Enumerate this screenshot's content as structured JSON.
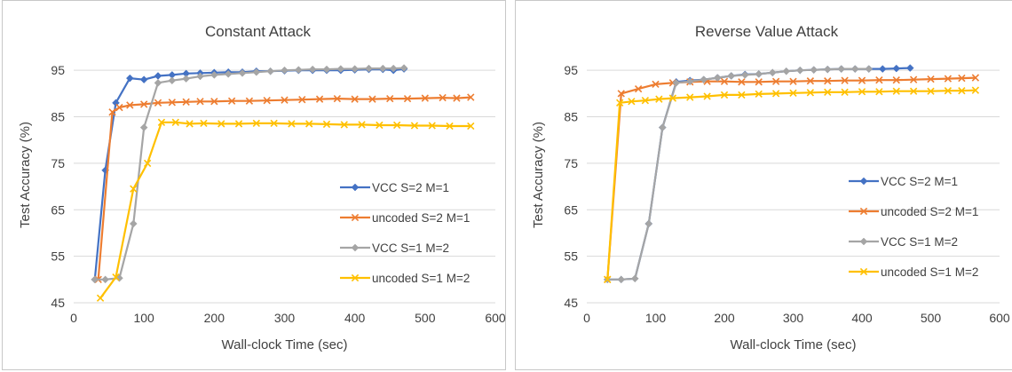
{
  "chart_data": [
    {
      "type": "line",
      "title": "Constant Attack",
      "xlabel": "Wall-clock Time (sec)",
      "ylabel": "Test Accuracy (%)",
      "xlim": [
        0,
        600
      ],
      "ylim": [
        45,
        100
      ],
      "xticks": [
        "0",
        "100",
        "200",
        "300",
        "400",
        "500",
        "600"
      ],
      "yticks": [
        "45",
        "55",
        "65",
        "75",
        "85",
        "95"
      ],
      "grid": "horizontal",
      "legend_position": "right",
      "series": [
        {
          "name": "VCC S=2 M=1",
          "color": "#4472C4",
          "marker": "diamond",
          "x": [
            30,
            45,
            60,
            80,
            100,
            120,
            140,
            160,
            180,
            200,
            220,
            240,
            260,
            280,
            300,
            320,
            340,
            360,
            380,
            400,
            420,
            440,
            455,
            470
          ],
          "y": [
            50,
            73.5,
            88,
            93.3,
            93,
            93.8,
            94,
            94.3,
            94.4,
            94.5,
            94.6,
            94.6,
            94.8,
            94.8,
            94.9,
            95,
            95,
            95,
            95,
            95.1,
            95.2,
            95.2,
            95,
            95.3
          ]
        },
        {
          "name": "uncoded S=2 M=1",
          "color": "#ED7D31",
          "marker": "x",
          "x": [
            35,
            55,
            65,
            80,
            100,
            120,
            140,
            160,
            180,
            200,
            225,
            250,
            275,
            300,
            325,
            350,
            375,
            400,
            425,
            450,
            475,
            500,
            525,
            545,
            565
          ],
          "y": [
            50,
            86,
            87,
            87.5,
            87.7,
            88,
            88.1,
            88.2,
            88.3,
            88.3,
            88.4,
            88.4,
            88.5,
            88.6,
            88.7,
            88.8,
            88.9,
            88.8,
            88.8,
            88.9,
            88.9,
            89,
            89.1,
            89,
            89.2
          ]
        },
        {
          "name": "VCC S=1 M=2",
          "color": "#A5A5A5",
          "marker": "diamond",
          "x": [
            30,
            45,
            65,
            85,
            100,
            120,
            140,
            160,
            180,
            200,
            220,
            240,
            260,
            280,
            300,
            320,
            340,
            360,
            380,
            400,
            420,
            440,
            455,
            470
          ],
          "y": [
            50,
            50,
            50.3,
            62,
            82.7,
            92.3,
            92.8,
            93.2,
            93.7,
            94,
            94.2,
            94.4,
            94.6,
            94.8,
            95,
            95.1,
            95.2,
            95.2,
            95.3,
            95.3,
            95.4,
            95.4,
            95.4,
            95.5
          ]
        },
        {
          "name": "uncoded S=1 M=2",
          "color": "#FFC000",
          "marker": "x",
          "x": [
            38,
            60,
            85,
            105,
            125,
            145,
            165,
            185,
            210,
            235,
            260,
            285,
            310,
            335,
            360,
            385,
            410,
            435,
            460,
            485,
            510,
            535,
            565
          ],
          "y": [
            46,
            50.5,
            69.5,
            75,
            83.8,
            83.8,
            83.5,
            83.6,
            83.5,
            83.5,
            83.6,
            83.6,
            83.5,
            83.5,
            83.4,
            83.3,
            83.3,
            83.2,
            83.2,
            83.1,
            83.1,
            83,
            83
          ]
        }
      ]
    },
    {
      "type": "line",
      "title": "Reverse Value Attack",
      "xlabel": "Wall-clock Time (sec)",
      "ylabel": "Test Accuracy (%)",
      "xlim": [
        0,
        600
      ],
      "ylim": [
        45,
        100
      ],
      "xticks": [
        "0",
        "100",
        "200",
        "300",
        "400",
        "500",
        "600"
      ],
      "yticks": [
        "45",
        "55",
        "65",
        "75",
        "85",
        "95"
      ],
      "grid": "horizontal",
      "legend_position": "right",
      "series": [
        {
          "name": "VCC S=2 M=1",
          "color": "#4472C4",
          "marker": "diamond",
          "x": [
            30,
            50,
            70,
            90,
            110,
            130,
            150,
            170,
            190,
            210,
            230,
            250,
            270,
            290,
            310,
            330,
            350,
            370,
            390,
            410,
            430,
            450,
            470
          ],
          "y": [
            50,
            50,
            50.2,
            62,
            82.7,
            92.5,
            92.8,
            93,
            93.4,
            93.8,
            94.1,
            94.2,
            94.5,
            94.8,
            95,
            95.1,
            95.2,
            95.3,
            95.3,
            95.3,
            95.3,
            95.4,
            95.5
          ]
        },
        {
          "name": "uncoded S=2 M=1",
          "color": "#ED7D31",
          "marker": "x",
          "x": [
            30,
            50,
            75,
            100,
            125,
            150,
            175,
            200,
            225,
            250,
            275,
            300,
            325,
            350,
            375,
            400,
            425,
            450,
            475,
            500,
            525,
            545,
            565
          ],
          "y": [
            50,
            90,
            91,
            92,
            92.3,
            92.5,
            92.6,
            92.6,
            92.5,
            92.5,
            92.6,
            92.6,
            92.7,
            92.7,
            92.8,
            92.8,
            92.9,
            92.9,
            93,
            93.1,
            93.2,
            93.3,
            93.4
          ]
        },
        {
          "name": "VCC S=1 M=2",
          "color": "#A5A5A5",
          "marker": "diamond",
          "x": [
            30,
            50,
            70,
            90,
            110,
            130,
            150,
            170,
            190,
            210,
            230,
            250,
            270,
            290,
            310,
            330,
            350,
            370,
            390,
            410
          ],
          "y": [
            50,
            50,
            50.2,
            62,
            82.7,
            92.3,
            92.6,
            93,
            93.4,
            93.8,
            94,
            94.2,
            94.5,
            94.8,
            95,
            95.1,
            95.2,
            95.3,
            95.3,
            95.3
          ]
        },
        {
          "name": "uncoded S=1 M=2",
          "color": "#FFC000",
          "marker": "x",
          "x": [
            30,
            48,
            65,
            85,
            105,
            125,
            150,
            175,
            200,
            225,
            250,
            275,
            300,
            325,
            350,
            375,
            400,
            425,
            450,
            475,
            500,
            525,
            545,
            565
          ],
          "y": [
            50,
            88,
            88.3,
            88.5,
            88.8,
            89,
            89.2,
            89.4,
            89.7,
            89.7,
            89.9,
            90,
            90.1,
            90.2,
            90.3,
            90.3,
            90.4,
            90.4,
            90.5,
            90.5,
            90.5,
            90.6,
            90.6,
            90.7
          ]
        }
      ]
    }
  ]
}
